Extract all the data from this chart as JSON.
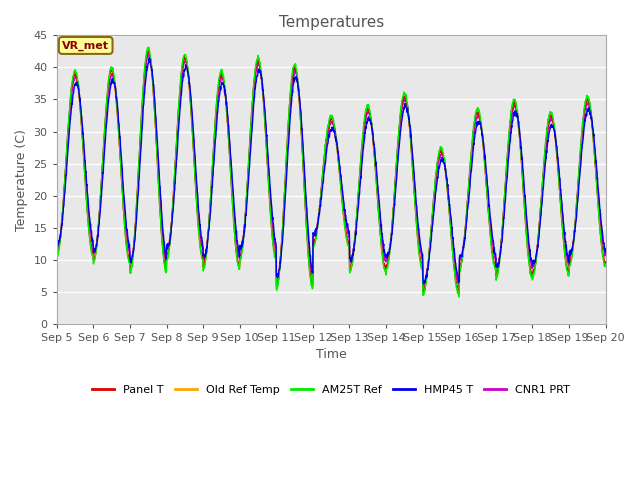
{
  "title": "Temperatures",
  "xlabel": "Time",
  "ylabel": "Temperature (C)",
  "ylim": [
    0,
    45
  ],
  "n_days": 15,
  "background_color": "#ffffff",
  "plot_bg_color": "#e8e8e8",
  "legend_label": "VR_met",
  "series": {
    "Panel T": {
      "color": "#dd0000",
      "lw": 1.0
    },
    "Old Ref Temp": {
      "color": "#ffa500",
      "lw": 1.0
    },
    "AM25T Ref": {
      "color": "#00ee00",
      "lw": 1.0
    },
    "HMP45 T": {
      "color": "#0000ee",
      "lw": 1.0
    },
    "CNR1 PRT": {
      "color": "#cc00cc",
      "lw": 1.0
    }
  },
  "yticks": [
    0,
    5,
    10,
    15,
    20,
    25,
    30,
    35,
    40,
    45
  ],
  "xtick_labels": [
    "Sep 5",
    "Sep 6",
    "Sep 7",
    "Sep 8",
    "Sep 9",
    "Sep 10",
    "Sep 11",
    "Sep 12",
    "Sep 13",
    "Sep 14",
    "Sep 15",
    "Sep 16",
    "Sep 17",
    "Sep 18",
    "Sep 19",
    "Sep 20"
  ],
  "grid_color": "#ffffff",
  "title_fontsize": 11,
  "tick_fontsize": 8,
  "label_fontsize": 9,
  "daily_max": [
    39.0,
    39.5,
    42.5,
    41.5,
    39.0,
    41.0,
    40.0,
    32.0,
    33.5,
    35.5,
    27.0,
    33.0,
    34.5,
    32.5,
    35.0
  ],
  "daily_min": [
    11.0,
    10.0,
    8.5,
    10.5,
    9.0,
    10.5,
    6.0,
    12.5,
    8.5,
    9.0,
    5.0,
    9.0,
    7.5,
    8.0,
    9.5
  ],
  "seed": 42
}
